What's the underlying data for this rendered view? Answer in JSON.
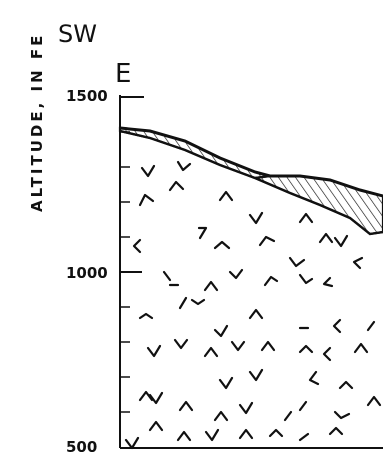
{
  "header": {
    "direction_left": "SW",
    "section_letter": "E"
  },
  "y_axis": {
    "label": "ALTITUDE, IN FE",
    "ticks": [
      {
        "value": 1500,
        "label": "1500"
      },
      {
        "value": 1000,
        "label": "1000"
      },
      {
        "value": 500,
        "label": "500"
      }
    ]
  },
  "colors": {
    "ink": "#111111",
    "paper": "#ffffff"
  },
  "legend_symbols": {
    "rock": "chevron-marks",
    "overburden": "diagonal-hatch"
  }
}
